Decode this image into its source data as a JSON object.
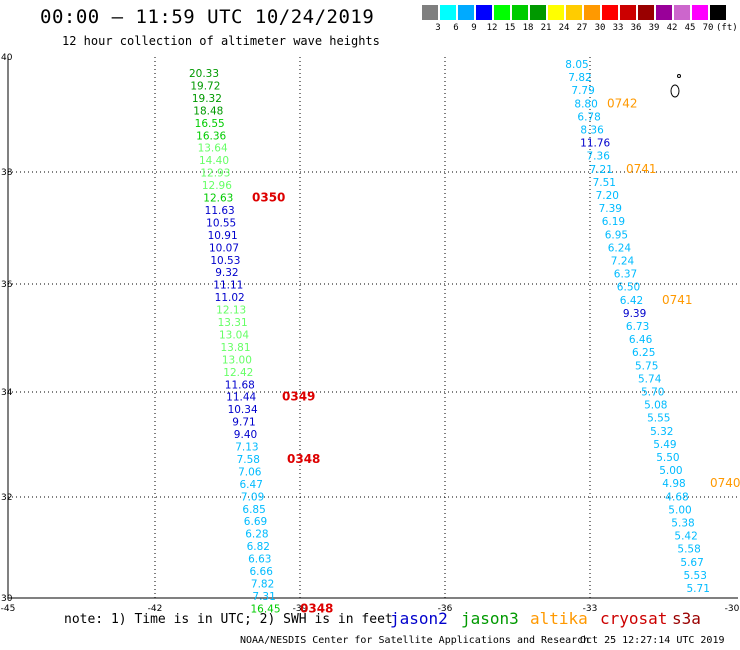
{
  "header": {
    "title": "00:00 – 11:59 UTC 10/24/2019",
    "subtitle": "12 hour collection of altimeter wave heights"
  },
  "colorbar": {
    "colors": [
      "#7f7f7f",
      "#00ffff",
      "#00aaff",
      "#0000ff",
      "#00ff00",
      "#00cc00",
      "#009900",
      "#ffff00",
      "#ffcc00",
      "#ff9900",
      "#ff0000",
      "#cc0000",
      "#990000",
      "#990099",
      "#cc66cc",
      "#ff00ff",
      "#000000"
    ],
    "labels": [
      "3",
      "6",
      "9",
      "12",
      "15",
      "18",
      "21",
      "24",
      "27",
      "30",
      "33",
      "36",
      "39",
      "42",
      "45",
      "70",
      "(ft)"
    ]
  },
  "axes": {
    "x_ticks": [
      "-45",
      "-42",
      "-39",
      "-36",
      "-33",
      "-30"
    ],
    "y_ticks": [
      "40",
      "38",
      "36",
      "34",
      "32",
      "30"
    ]
  },
  "track_left": {
    "entries": [
      {
        "v": "20.33",
        "c": "#009900"
      },
      {
        "v": "19.72",
        "c": "#009900"
      },
      {
        "v": "19.32",
        "c": "#009900"
      },
      {
        "v": "18.48",
        "c": "#009900"
      },
      {
        "v": "16.55",
        "c": "#00cc00"
      },
      {
        "v": "16.36",
        "c": "#00cc00"
      },
      {
        "v": "13.64",
        "c": "#66ff66"
      },
      {
        "v": "14.40",
        "c": "#66ff66"
      },
      {
        "v": "12.93",
        "c": "#66ff66"
      },
      {
        "v": "12.96",
        "c": "#66ff66"
      },
      {
        "v": "12.63",
        "c": "#00cc00"
      },
      {
        "v": "11.63",
        "c": "#0000cc"
      },
      {
        "v": "10.55",
        "c": "#0000cc"
      },
      {
        "v": "10.91",
        "c": "#0000cc"
      },
      {
        "v": "10.07",
        "c": "#0000cc"
      },
      {
        "v": "10.53",
        "c": "#0000cc"
      },
      {
        "v": "9.32",
        "c": "#0000cc"
      },
      {
        "v": "11.11",
        "c": "#0000cc"
      },
      {
        "v": "11.02",
        "c": "#0000cc"
      },
      {
        "v": "12.13",
        "c": "#66ff66"
      },
      {
        "v": "13.31",
        "c": "#66ff66"
      },
      {
        "v": "13.04",
        "c": "#66ff66"
      },
      {
        "v": "13.81",
        "c": "#66ff66"
      },
      {
        "v": "13.00",
        "c": "#66ff66"
      },
      {
        "v": "12.42",
        "c": "#66ff66"
      },
      {
        "v": "11.68",
        "c": "#0000cc"
      },
      {
        "v": "11.44",
        "c": "#0000cc"
      },
      {
        "v": "10.34",
        "c": "#0000cc"
      },
      {
        "v": "9.71",
        "c": "#0000cc"
      },
      {
        "v": "9.40",
        "c": "#0000cc"
      },
      {
        "v": "7.13",
        "c": "#00bbff"
      },
      {
        "v": "7.58",
        "c": "#00bbff"
      },
      {
        "v": "7.06",
        "c": "#00bbff"
      },
      {
        "v": "6.47",
        "c": "#00bbff"
      },
      {
        "v": "7.09",
        "c": "#00bbff"
      },
      {
        "v": "6.85",
        "c": "#00bbff"
      },
      {
        "v": "6.69",
        "c": "#00bbff"
      },
      {
        "v": "6.28",
        "c": "#00bbff"
      },
      {
        "v": "6.82",
        "c": "#00bbff"
      },
      {
        "v": "6.63",
        "c": "#00bbff"
      },
      {
        "v": "6.66",
        "c": "#00bbff"
      },
      {
        "v": "7.82",
        "c": "#00bbff"
      },
      {
        "v": "7.31",
        "c": "#00bbff"
      },
      {
        "v": "16.45",
        "c": "#00cc00"
      }
    ],
    "times": [
      {
        "t": "0350",
        "c": "#dd0000",
        "after": 10
      },
      {
        "t": "0349",
        "c": "#dd0000",
        "after": 26
      },
      {
        "t": "0348",
        "c": "#dd0000",
        "after": 31
      },
      {
        "t": "0348",
        "c": "#dd0000",
        "after": 43
      }
    ]
  },
  "track_right": {
    "entries": [
      {
        "v": "8.05",
        "c": "#00bbff"
      },
      {
        "v": "7.82",
        "c": "#00bbff"
      },
      {
        "v": "7.79",
        "c": "#00bbff"
      },
      {
        "v": "8.80",
        "c": "#00bbff"
      },
      {
        "v": "6.78",
        "c": "#00bbff"
      },
      {
        "v": "8.36",
        "c": "#00bbff"
      },
      {
        "v": "11.76",
        "c": "#0000cc"
      },
      {
        "v": "7.36",
        "c": "#00bbff"
      },
      {
        "v": "7.21",
        "c": "#00bbff"
      },
      {
        "v": "7.51",
        "c": "#00bbff"
      },
      {
        "v": "7.20",
        "c": "#00bbff"
      },
      {
        "v": "7.39",
        "c": "#00bbff"
      },
      {
        "v": "6.19",
        "c": "#00bbff"
      },
      {
        "v": "6.95",
        "c": "#00bbff"
      },
      {
        "v": "6.24",
        "c": "#00bbff"
      },
      {
        "v": "7.24",
        "c": "#00bbff"
      },
      {
        "v": "6.37",
        "c": "#00bbff"
      },
      {
        "v": "6.50",
        "c": "#00bbff"
      },
      {
        "v": "6.42",
        "c": "#00bbff"
      },
      {
        "v": "9.39",
        "c": "#0000cc"
      },
      {
        "v": "6.73",
        "c": "#00bbff"
      },
      {
        "v": "6.46",
        "c": "#00bbff"
      },
      {
        "v": "6.25",
        "c": "#00bbff"
      },
      {
        "v": "5.75",
        "c": "#00bbff"
      },
      {
        "v": "5.74",
        "c": "#00bbff"
      },
      {
        "v": "5.70",
        "c": "#00bbff"
      },
      {
        "v": "5.08",
        "c": "#00bbff"
      },
      {
        "v": "5.55",
        "c": "#00bbff"
      },
      {
        "v": "5.32",
        "c": "#00bbff"
      },
      {
        "v": "5.49",
        "c": "#00bbff"
      },
      {
        "v": "5.50",
        "c": "#00bbff"
      },
      {
        "v": "5.00",
        "c": "#00bbff"
      },
      {
        "v": "4.98",
        "c": "#00bbff"
      },
      {
        "v": "4.68",
        "c": "#00bbff"
      },
      {
        "v": "5.00",
        "c": "#00bbff"
      },
      {
        "v": "5.38",
        "c": "#00bbff"
      },
      {
        "v": "5.42",
        "c": "#00bbff"
      },
      {
        "v": "5.58",
        "c": "#00bbff"
      },
      {
        "v": "5.67",
        "c": "#00bbff"
      },
      {
        "v": "5.53",
        "c": "#00bbff"
      },
      {
        "v": "5.71",
        "c": "#00bbff"
      }
    ],
    "times": [
      {
        "t": "0742",
        "c": "#ff9900",
        "after": 3
      },
      {
        "t": "0741",
        "c": "#ff9900",
        "after": 8
      },
      {
        "t": "0741",
        "c": "#ff9900",
        "after": 18
      },
      {
        "t": "0740",
        "c": "#ff9900",
        "after": 32
      }
    ]
  },
  "note": "note: 1) Time is in UTC; 2) SWH is in feet",
  "missions": [
    {
      "name": "jason2",
      "color": "#0000cc"
    },
    {
      "name": "jason3",
      "color": "#009900"
    },
    {
      "name": "altika",
      "color": "#ff9900"
    },
    {
      "name": "cryosat",
      "color": "#cc0000"
    },
    {
      "name": "s3a",
      "color": "#990000"
    }
  ],
  "footer": {
    "left": "NOAA/NESDIS Center for Satellite Applications and Research",
    "right": "Oct 25 12:27:14 UTC 2019"
  }
}
